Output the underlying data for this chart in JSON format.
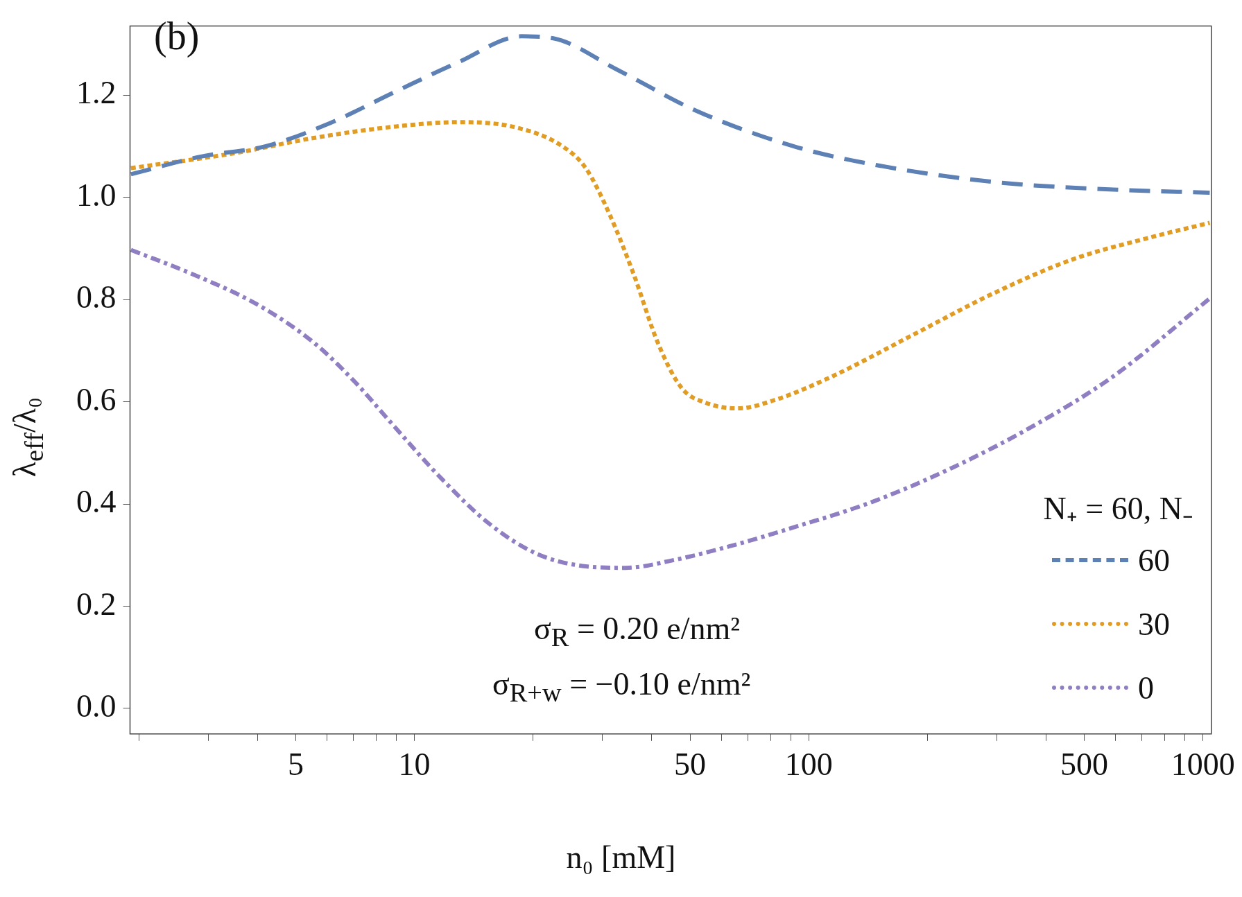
{
  "chart_data": {
    "type": "line",
    "xlabel": "n₀ [mM]",
    "ylabel": "λ$_{eff}$/λ₀",
    "legend_title": "N₊ = 60, N₋",
    "legend": "bottom right",
    "log": "x",
    "grid": false,
    "marker": "none",
    "xlim": [
      1.9,
      1050
    ],
    "xticks": [
      {
        "value": 2,
        "label": null
      },
      {
        "value": 3,
        "label": null
      },
      {
        "value": 4,
        "label": null
      },
      5,
      {
        "value": 6,
        "label": null
      },
      {
        "value": 7,
        "label": null
      },
      {
        "value": 8,
        "label": null
      },
      {
        "value": 9,
        "label": null
      },
      10,
      {
        "value": 20,
        "label": null
      },
      {
        "value": 30,
        "label": null
      },
      {
        "value": 40,
        "label": null
      },
      50,
      {
        "value": 60,
        "label": null
      },
      {
        "value": 70,
        "label": null
      },
      {
        "value": 80,
        "label": null
      },
      {
        "value": 90,
        "label": null
      },
      100,
      {
        "value": 200,
        "label": null
      },
      {
        "value": 300,
        "label": null
      },
      {
        "value": 400,
        "label": null
      },
      500,
      {
        "value": 600,
        "label": null
      },
      {
        "value": 700,
        "label": null
      },
      {
        "value": 800,
        "label": null
      },
      {
        "value": 900,
        "label": null
      },
      1000
    ],
    "ylim": [
      -0.05,
      1.335
    ],
    "yticks": [
      {
        "value": 0,
        "label": "0.0"
      },
      0.2,
      0.4,
      0.6,
      0.8,
      {
        "value": 1,
        "label": "1.0"
      },
      1.2
    ],
    "annotations": [
      "(b)",
      "σ$_{R}$ = 0.20 e/nm²",
      "σ$_{R+w}$ = −0.10 e/nm²"
    ],
    "series": [
      {
        "name": "60",
        "color": "#5e81b5",
        "line_style": "dashed",
        "x": [
          1.91,
          2.89,
          4.2,
          6.1,
          8.86,
          12.9,
          18.7,
          22.5,
          32.8,
          52.3,
          91.4,
          146,
          294,
          593,
          1040
        ],
        "values": [
          1.045,
          1.08,
          1.1,
          1.145,
          1.205,
          1.264,
          1.315,
          1.311,
          1.249,
          1.168,
          1.1,
          1.064,
          1.03,
          1.015,
          1.009
        ]
      },
      {
        "name": "30",
        "color": "#e19c24",
        "line_style": "dotted",
        "x": [
          1.91,
          3.48,
          5.55,
          8.86,
          12.9,
          17.8,
          23.6,
          27.2,
          31.2,
          36,
          41.4,
          47.6,
          54.8,
          66,
          83.2,
          115,
          184,
          294,
          469,
          748,
          1040
        ],
        "values": [
          1.057,
          1.086,
          1.116,
          1.138,
          1.147,
          1.138,
          1.101,
          1.057,
          0.968,
          0.849,
          0.716,
          0.627,
          0.598,
          0.587,
          0.605,
          0.65,
          0.731,
          0.812,
          0.879,
          0.923,
          0.95
        ]
      },
      {
        "name": "0",
        "color": "#8f7ec1",
        "line_style": "dashdot",
        "x": [
          1.91,
          2.75,
          4,
          5.55,
          7,
          8.86,
          11.7,
          15.5,
          20.5,
          27.2,
          34.3,
          45.3,
          62.9,
          91.4,
          146,
          233,
          372,
          593,
          1040
        ],
        "values": [
          0.897,
          0.849,
          0.79,
          0.716,
          0.642,
          0.553,
          0.45,
          0.361,
          0.302,
          0.278,
          0.275,
          0.29,
          0.317,
          0.354,
          0.405,
          0.472,
          0.553,
          0.65,
          0.802
        ]
      }
    ]
  }
}
